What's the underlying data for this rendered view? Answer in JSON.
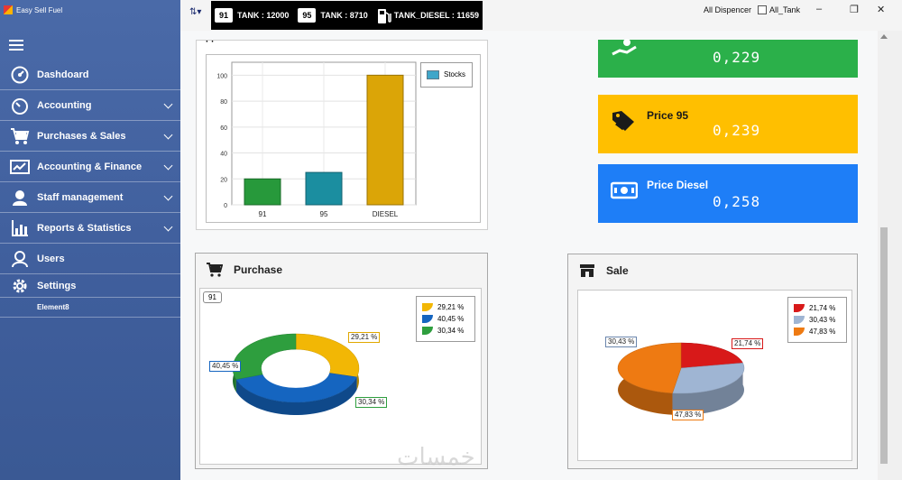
{
  "app": {
    "title": "Easy Sell Fuel"
  },
  "sidebar": {
    "items": [
      {
        "label": "Dashdoard",
        "icon": "dashboard-icon",
        "expandable": false
      },
      {
        "label": "Accounting",
        "icon": "speedometer-icon",
        "expandable": true
      },
      {
        "label": "Purchases & Sales",
        "icon": "cart-icon",
        "expandable": true
      },
      {
        "label": "Accounting & Finance",
        "icon": "finance-icon",
        "expandable": true
      },
      {
        "label": "Staff management",
        "icon": "staff-icon",
        "expandable": true
      },
      {
        "label": "Reports & Statistics",
        "icon": "chart-icon",
        "expandable": true
      },
      {
        "label": "Users",
        "icon": "users-icon",
        "expandable": false
      },
      {
        "label": "Settings",
        "icon": "gear-icon",
        "expandable": false
      }
    ],
    "sub_item": "Element8"
  },
  "topbar": {
    "tanks": [
      {
        "badge": "91",
        "label": "TANK : 12000"
      },
      {
        "badge": "95",
        "label": "TANK : 8710"
      },
      {
        "badge": "",
        "label": "TANK_DIESEL : 11659"
      }
    ],
    "dispencer_label": "All Dispencer",
    "tank_checkbox_label": "All_Tank"
  },
  "price_cards": [
    {
      "title": "",
      "value": "0,229",
      "color": "#2bb04a",
      "icon": "hand-money-icon"
    },
    {
      "title": "Price 95",
      "value": "0,239",
      "color": "#ffbf00",
      "icon": "price-tag-icon"
    },
    {
      "title": "Price Diesel",
      "value": "0,258",
      "color": "#1e7ef7",
      "icon": "banknote-icon"
    }
  ],
  "sections": {
    "purchase": {
      "title": "Purchase",
      "tooltip": "91"
    },
    "sale": {
      "title": "Sale"
    }
  },
  "chart_data": [
    {
      "type": "bar",
      "categories": [
        "91",
        "95",
        "DIESEL"
      ],
      "values": [
        20,
        25,
        100
      ],
      "colors": [
        "#27993b",
        "#1b8ea0",
        "#dba507"
      ],
      "legend": "Stocks",
      "yticks": [
        "0",
        "20",
        "40",
        "60",
        "80",
        "100"
      ],
      "ylim": [
        0,
        110
      ],
      "grid": true,
      "legend_position": "top-right"
    },
    {
      "type": "pie",
      "style": "doughnut-3d",
      "slices": [
        {
          "label": "29,21 %",
          "value": 29.21,
          "color": "#f2b705"
        },
        {
          "label": "40,45 %",
          "value": 40.45,
          "color": "#1565c0"
        },
        {
          "label": "30,34 %",
          "value": 30.34,
          "color": "#2e9e3e"
        }
      ],
      "legend_position": "top-right"
    },
    {
      "type": "pie",
      "style": "pie-3d",
      "slices": [
        {
          "label": "21,74 %",
          "value": 21.74,
          "color": "#d81919"
        },
        {
          "label": "30,43 %",
          "value": 30.43,
          "color": "#9fb5d3"
        },
        {
          "label": "47,83 %",
          "value": 47.83,
          "color": "#ee7a12"
        }
      ],
      "legend_position": "top-right"
    }
  ]
}
